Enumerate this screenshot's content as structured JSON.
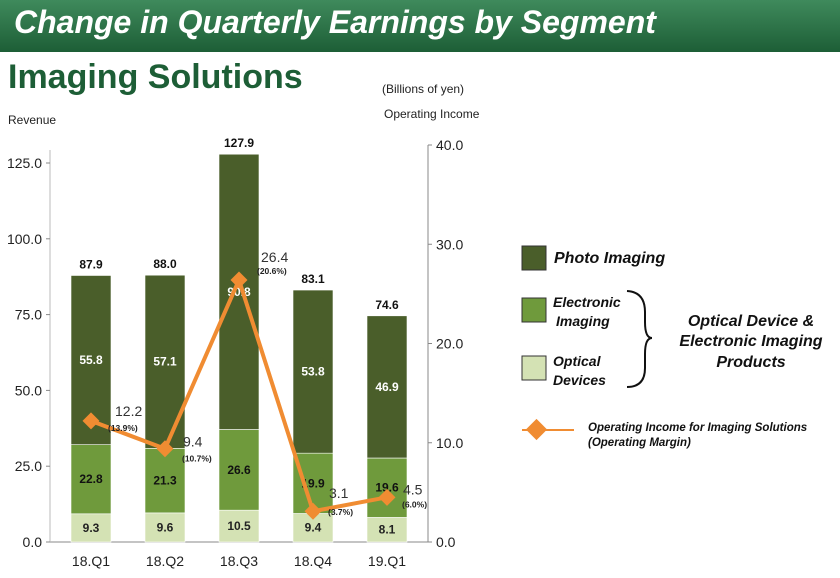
{
  "header": {
    "title": "Change in Quarterly Earnings by Segment",
    "section": "Imaging Solutions",
    "unit": "(Billions of yen)"
  },
  "colors": {
    "photo": "#4a5e2a",
    "electronic": "#6f9a3c",
    "optical": "#d4e2b4",
    "line": "#f08c32",
    "banner": "#1d5e36"
  },
  "legend": {
    "photo": "Photo Imaging",
    "electronic": "Electronic Imaging",
    "optical": "Optical Devices",
    "group": "Optical Device & Electronic Imaging Products",
    "line": "Operating Income for Imaging Solutions (Operating Margin)"
  },
  "chart_data": {
    "type": "bar",
    "stacked": true,
    "categories": [
      "18.Q1",
      "18.Q2",
      "18.Q3",
      "18.Q4",
      "19.Q1"
    ],
    "ylabel": "Revenue",
    "y2label": "Operating Income",
    "ylim": [
      0,
      125
    ],
    "yticks": [
      "0.0",
      "25.0",
      "50.0",
      "75.0",
      "100.0",
      "125.0"
    ],
    "y2lim": [
      0,
      40
    ],
    "y2ticks": [
      "0.0",
      "10.0",
      "20.0",
      "30.0",
      "40.0"
    ],
    "series": [
      {
        "name": "Optical Devices",
        "values": [
          9.3,
          9.6,
          10.5,
          9.4,
          8.1
        ],
        "labels": [
          "9.3",
          "9.6",
          "10.5",
          "9.4",
          "8.1"
        ]
      },
      {
        "name": "Electronic Imaging",
        "values": [
          22.8,
          21.3,
          26.6,
          19.9,
          19.6
        ],
        "labels": [
          "22.8",
          "21.3",
          "26.6",
          "19.9",
          "19.6"
        ]
      },
      {
        "name": "Photo Imaging",
        "values": [
          55.8,
          57.1,
          90.8,
          53.8,
          46.9
        ],
        "labels": [
          "55.8",
          "57.1",
          "90.8",
          "53.8",
          "46.9"
        ]
      }
    ],
    "totals": [
      "87.9",
      "88.0",
      "127.9",
      "83.1",
      "74.6"
    ],
    "totals_values": [
      87.9,
      88.0,
      127.9,
      83.1,
      74.6
    ],
    "line": {
      "name": "Operating Income for Imaging Solutions",
      "values": [
        12.2,
        9.4,
        26.4,
        3.1,
        4.5
      ],
      "labels": [
        "12.2",
        "9.4",
        "26.4",
        "3.1",
        "4.5"
      ],
      "margins": [
        "(13.9%)",
        "(10.7%)",
        "(20.6%)",
        "(3.7%)",
        "(6.0%)"
      ]
    }
  }
}
